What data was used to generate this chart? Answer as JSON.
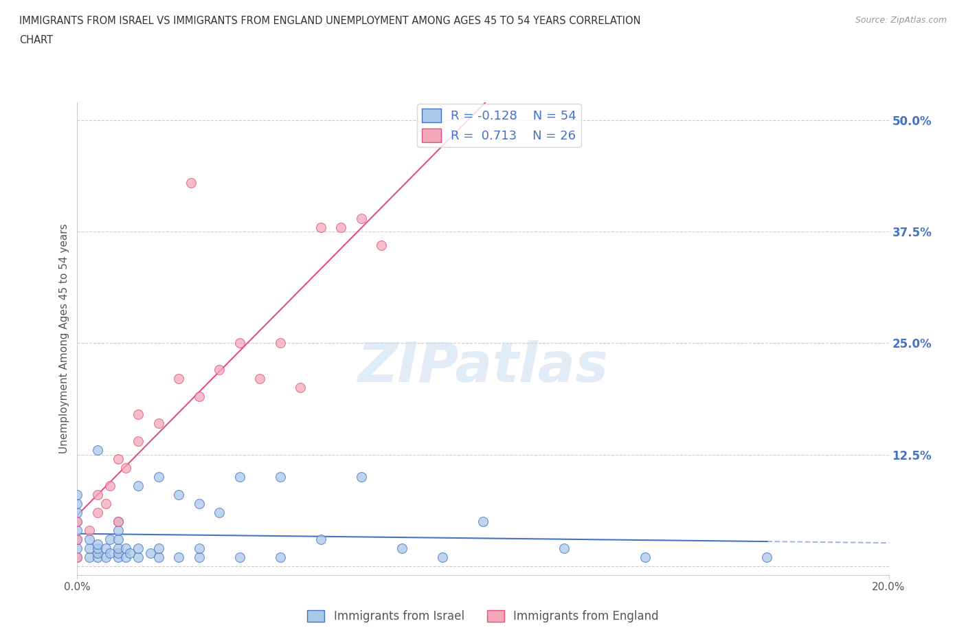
{
  "title_line1": "IMMIGRANTS FROM ISRAEL VS IMMIGRANTS FROM ENGLAND UNEMPLOYMENT AMONG AGES 45 TO 54 YEARS CORRELATION",
  "title_line2": "CHART",
  "source": "Source: ZipAtlas.com",
  "ylabel": "Unemployment Among Ages 45 to 54 years",
  "xlim": [
    0.0,
    0.2
  ],
  "ylim": [
    -0.01,
    0.52
  ],
  "ytick_positions": [
    0.0,
    0.125,
    0.25,
    0.375,
    0.5
  ],
  "ytick_labels": [
    "",
    "12.5%",
    "25.0%",
    "37.5%",
    "50.0%"
  ],
  "grid_color": "#cccccc",
  "background_color": "#ffffff",
  "color_israel": "#a8c8e8",
  "color_england": "#f4a8b8",
  "line_color_israel": "#4472c4",
  "line_color_england": "#e05080",
  "israel_R": -0.128,
  "israel_N": 54,
  "england_R": 0.713,
  "england_N": 26,
  "israel_x": [
    0.0,
    0.0,
    0.0,
    0.0,
    0.0,
    0.0,
    0.0,
    0.0,
    0.003,
    0.003,
    0.003,
    0.005,
    0.005,
    0.005,
    0.005,
    0.005,
    0.007,
    0.007,
    0.008,
    0.008,
    0.01,
    0.01,
    0.01,
    0.01,
    0.01,
    0.01,
    0.012,
    0.012,
    0.013,
    0.015,
    0.015,
    0.015,
    0.018,
    0.02,
    0.02,
    0.02,
    0.025,
    0.025,
    0.03,
    0.03,
    0.03,
    0.035,
    0.04,
    0.04,
    0.05,
    0.05,
    0.06,
    0.07,
    0.08,
    0.09,
    0.1,
    0.12,
    0.14,
    0.17
  ],
  "israel_y": [
    0.01,
    0.02,
    0.03,
    0.04,
    0.05,
    0.06,
    0.07,
    0.08,
    0.01,
    0.02,
    0.03,
    0.01,
    0.015,
    0.02,
    0.025,
    0.13,
    0.01,
    0.02,
    0.015,
    0.03,
    0.01,
    0.015,
    0.02,
    0.03,
    0.04,
    0.05,
    0.01,
    0.02,
    0.015,
    0.01,
    0.02,
    0.09,
    0.015,
    0.01,
    0.02,
    0.1,
    0.01,
    0.08,
    0.01,
    0.02,
    0.07,
    0.06,
    0.01,
    0.1,
    0.01,
    0.1,
    0.03,
    0.1,
    0.02,
    0.01,
    0.05,
    0.02,
    0.01,
    0.01
  ],
  "england_x": [
    0.0,
    0.0,
    0.0,
    0.003,
    0.005,
    0.005,
    0.007,
    0.008,
    0.01,
    0.01,
    0.012,
    0.015,
    0.015,
    0.02,
    0.025,
    0.028,
    0.03,
    0.035,
    0.04,
    0.045,
    0.05,
    0.055,
    0.06,
    0.065,
    0.07,
    0.075
  ],
  "england_y": [
    0.01,
    0.03,
    0.05,
    0.04,
    0.06,
    0.08,
    0.07,
    0.09,
    0.05,
    0.12,
    0.11,
    0.14,
    0.17,
    0.16,
    0.21,
    0.43,
    0.19,
    0.22,
    0.25,
    0.21,
    0.25,
    0.2,
    0.38,
    0.38,
    0.39,
    0.36
  ]
}
